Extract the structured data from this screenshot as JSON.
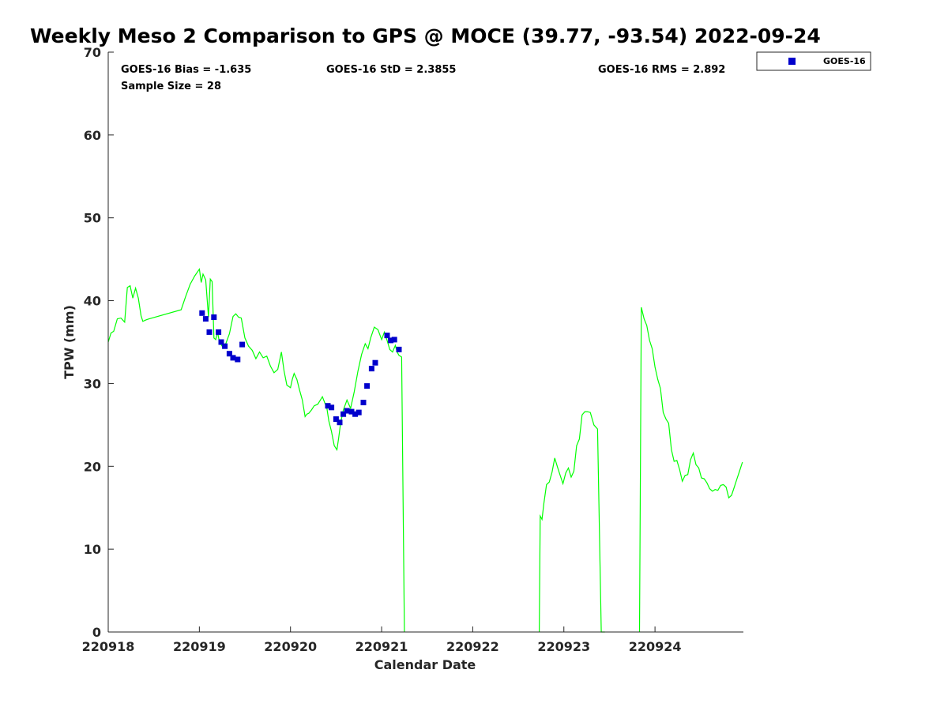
{
  "chart_data": {
    "type": "scatter",
    "title": "Weekly Meso 2 Comparison to GPS @ MOCE (39.77, -93.54) 2022-09-24",
    "xlabel": "Calendar Date",
    "ylabel": "TPW (mm)",
    "xlim": [
      0,
      6.97
    ],
    "ylim": [
      0,
      70
    ],
    "x_ticks": [
      {
        "value": 0,
        "label": "220918"
      },
      {
        "value": 1,
        "label": "220919"
      },
      {
        "value": 2,
        "label": "220920"
      },
      {
        "value": 3,
        "label": "220921"
      },
      {
        "value": 4,
        "label": "220922"
      },
      {
        "value": 5,
        "label": "220923"
      },
      {
        "value": 6,
        "label": "220924"
      }
    ],
    "y_ticks": [
      0,
      10,
      20,
      30,
      40,
      50,
      60,
      70
    ],
    "grid": false,
    "legend_position": "outside top-right",
    "stats": {
      "bias": "GOES-16 Bias = -1.635",
      "std": "GOES-16 StD = 2.3855",
      "rms": "GOES-16 RMS = 2.892",
      "sample": "Sample Size = 28"
    },
    "colors": {
      "gps": "#00ff00",
      "goes": "#0000cc"
    },
    "series": [
      {
        "name": "GOES-16",
        "kind": "scatter",
        "x": [
          1.03,
          1.07,
          1.11,
          1.16,
          1.21,
          1.24,
          1.28,
          1.33,
          1.37,
          1.42,
          1.47,
          2.41,
          2.45,
          2.5,
          2.54,
          2.58,
          2.62,
          2.67,
          2.71,
          2.75,
          2.8,
          2.84,
          2.89,
          2.93,
          3.06,
          3.1,
          3.14,
          3.19
        ],
        "y": [
          38.5,
          37.8,
          36.2,
          38.0,
          36.2,
          35.0,
          34.5,
          33.6,
          33.1,
          32.9,
          34.7,
          27.3,
          27.1,
          25.7,
          25.3,
          26.3,
          26.7,
          26.6,
          26.3,
          26.5,
          27.7,
          29.7,
          31.8,
          32.5,
          35.8,
          35.2,
          35.3,
          34.1
        ]
      },
      {
        "kind": "line",
        "segments": [
          {
            "x": [
              0.0,
              0.03,
              0.06,
              0.1,
              0.14,
              0.18,
              0.21,
              0.24,
              0.27,
              0.3,
              0.33,
              0.36,
              0.38,
              0.4,
              0.42,
              0.45,
              0.8,
              0.85,
              0.9,
              0.95,
              1.0,
              1.02,
              1.04,
              1.07,
              1.1,
              1.12,
              1.14,
              1.16,
              1.18,
              1.2,
              1.22,
              1.25,
              1.29,
              1.33,
              1.37,
              1.4,
              1.43,
              1.46,
              1.5,
              1.54,
              1.58,
              1.62,
              1.66,
              1.7,
              1.74,
              1.78,
              1.82,
              1.86,
              1.9,
              1.93,
              1.96,
              2.0,
              2.02,
              2.04,
              2.07,
              2.1,
              2.13,
              2.16,
              2.18,
              2.2,
              2.23,
              2.26,
              2.3,
              2.35,
              2.4,
              2.42,
              2.45,
              2.48,
              2.51,
              2.53,
              2.55,
              2.58,
              2.62,
              2.66,
              2.7,
              2.74,
              2.78,
              2.82,
              2.85,
              2.88,
              2.92,
              2.96,
              3.0,
              3.03,
              3.06,
              3.09,
              3.12,
              3.15,
              3.17,
              3.19,
              3.22,
              3.25
            ],
            "y": [
              35.0,
              36.1,
              36.3,
              37.8,
              37.9,
              37.4,
              41.6,
              41.8,
              40.3,
              41.5,
              40.3,
              38.2,
              37.5,
              37.6,
              37.7,
              37.8,
              38.9,
              40.5,
              42.0,
              43.0,
              43.8,
              42.2,
              43.2,
              42.5,
              38.0,
              42.6,
              42.3,
              35.5,
              35.3,
              36.2,
              35.0,
              34.5,
              34.8,
              36.0,
              38.1,
              38.4,
              38.0,
              37.9,
              35.5,
              34.5,
              34.0,
              33.0,
              33.8,
              33.1,
              33.3,
              32.1,
              31.3,
              31.7,
              33.8,
              31.5,
              29.8,
              29.5,
              30.5,
              31.2,
              30.5,
              29.2,
              28.0,
              26.0,
              26.3,
              26.4,
              26.8,
              27.3,
              27.5,
              28.4,
              27.0,
              25.5,
              24.2,
              22.5,
              22.0,
              23.5,
              25.2,
              26.8,
              28.0,
              27.0,
              29.0,
              31.5,
              33.5,
              34.8,
              34.2,
              35.5,
              36.8,
              36.5,
              35.3,
              36.2,
              35.2,
              34.1,
              33.8,
              34.6,
              33.8,
              33.4,
              33.2,
              0.0
            ]
          },
          {
            "x": [
              4.73,
              4.74,
              4.76,
              4.78,
              4.81,
              4.84,
              4.87,
              4.9,
              4.93,
              4.96,
              4.99,
              5.02,
              5.05,
              5.08,
              5.11,
              5.14,
              5.17,
              5.2,
              5.23,
              5.26,
              5.29,
              5.33,
              5.37,
              5.41,
              5.43,
              5.45
            ],
            "y": [
              0.0,
              14.0,
              13.6,
              15.5,
              17.8,
              18.1,
              19.3,
              21.0,
              19.9,
              18.9,
              17.9,
              19.2,
              19.8,
              18.7,
              19.4,
              22.5,
              23.3,
              26.2,
              26.6,
              26.6,
              26.5,
              25.0,
              24.5,
              0.0,
              0.0,
              0.0
            ]
          },
          {
            "x": [
              5.83,
              5.85,
              5.88,
              5.91,
              5.94,
              5.97,
              6.0,
              6.03,
              6.06,
              6.09,
              6.12,
              6.15,
              6.18,
              6.21,
              6.24,
              6.27,
              6.3,
              6.33,
              6.36,
              6.39,
              6.42,
              6.45,
              6.48,
              6.51,
              6.54,
              6.57,
              6.6,
              6.63,
              6.66,
              6.69,
              6.72,
              6.75,
              6.78,
              6.81,
              6.84,
              6.87,
              6.9,
              6.93,
              6.96
            ],
            "y": [
              0.0,
              39.2,
              37.8,
              37.0,
              35.2,
              34.2,
              32.0,
              30.5,
              29.4,
              26.5,
              25.7,
              25.2,
              22.0,
              20.6,
              20.7,
              19.6,
              18.2,
              18.9,
              19.0,
              20.8,
              21.6,
              20.2,
              19.8,
              18.6,
              18.5,
              18.0,
              17.3,
              17.0,
              17.2,
              17.1,
              17.7,
              17.8,
              17.5,
              16.2,
              16.5,
              17.5,
              18.5,
              19.5,
              20.5
            ]
          }
        ]
      }
    ]
  }
}
